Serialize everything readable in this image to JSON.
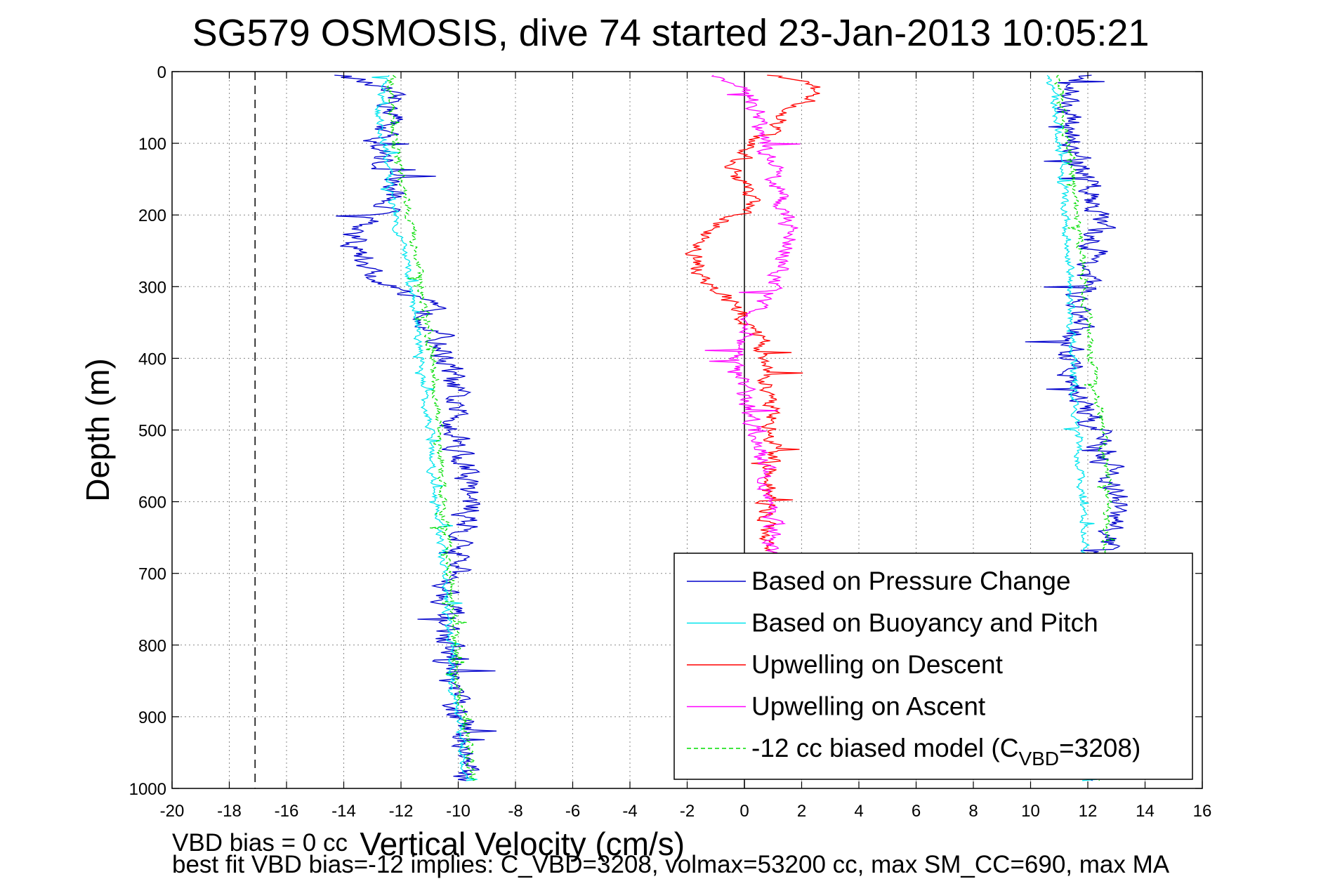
{
  "chart_data": {
    "type": "line",
    "title": "SG579 OSMOSIS, dive 74 started 23-Jan-2013 10:05:21",
    "xlabel": "Vertical Velocity (cm/s)",
    "ylabel": "Depth (m)",
    "xlim": [
      -20,
      16
    ],
    "ylim": [
      0,
      1000
    ],
    "y_reversed": true,
    "grid": true,
    "legend_position": "bottom-right",
    "x_ticks": [
      -20,
      -18,
      -16,
      -14,
      -12,
      -10,
      -8,
      -6,
      -4,
      -2,
      0,
      2,
      4,
      6,
      8,
      10,
      12,
      14,
      16
    ],
    "y_ticks": [
      0,
      100,
      200,
      300,
      400,
      500,
      600,
      700,
      800,
      900,
      1000
    ],
    "reference_line_x": -17.1,
    "zero_line_x": 0,
    "series": [
      {
        "name": "Based on Pressure Change",
        "color": "#0000cc",
        "style": "solid",
        "noise": 0.9,
        "segments": [
          {
            "depth": [
              5,
              20,
              40,
              60,
              80,
              100,
              130,
              160,
              190,
              210,
              230,
              250,
              270,
              290,
              310,
              330,
              360,
              400,
              450,
              500,
              550,
              600,
              650,
              700,
              750,
              800,
              850,
              900,
              950,
              990
            ],
            "v": [
              -14,
              -13,
              -12.3,
              -12.2,
              -12.5,
              -12.8,
              -12.6,
              -12.3,
              -12.5,
              -13,
              -13.8,
              -13.5,
              -13.2,
              -13,
              -12,
              -11,
              -10.8,
              -10.4,
              -10.2,
              -10,
              -9.8,
              -9.6,
              -9.8,
              -10.2,
              -10.3,
              -10.4,
              -10.3,
              -10,
              -9.7,
              -9.8
            ]
          },
          {
            "depth": [
              5,
              20,
              40,
              60,
              80,
              100,
              130,
              160,
              190,
              220,
              260,
              300,
              350,
              400,
              450,
              500,
              550,
              600,
              650,
              700,
              750,
              800,
              850,
              900,
              950,
              990
            ],
            "v": [
              12,
              11.5,
              11.3,
              11.2,
              11.4,
              11.5,
              11.6,
              12,
              12.4,
              12.3,
              12.2,
              11.8,
              11.6,
              11.4,
              11.7,
              12.3,
              12.8,
              13,
              12.7,
              12.5,
              12.4,
              12.3,
              12.2,
              12.2,
              12.3,
              12.3
            ]
          }
        ]
      },
      {
        "name": "Based on Buoyancy and Pitch",
        "color": "#00e5ee",
        "style": "solid",
        "noise": 0.25,
        "segments": [
          {
            "depth": [
              5,
              30,
              60,
              100,
              150,
              200,
              250,
              300,
              350,
              400,
              450,
              500,
              550,
              600,
              650,
              700,
              750,
              800,
              850,
              900,
              950,
              990
            ],
            "v": [
              -12.5,
              -12.7,
              -12.8,
              -12.6,
              -12.4,
              -12.2,
              -11.9,
              -11.7,
              -11.5,
              -11.3,
              -11.2,
              -11,
              -10.9,
              -10.8,
              -10.6,
              -10.5,
              -10.4,
              -10.3,
              -10.2,
              -10,
              -9.8,
              -9.8
            ]
          },
          {
            "depth": [
              5,
              30,
              60,
              100,
              150,
              200,
              250,
              300,
              350,
              400,
              450,
              500,
              550,
              600,
              650,
              700,
              750,
              800,
              850,
              900,
              950,
              990
            ],
            "v": [
              10.6,
              10.8,
              10.9,
              11,
              11.1,
              11.2,
              11.3,
              11.4,
              11.4,
              11.5,
              11.5,
              11.6,
              11.7,
              11.8,
              11.9,
              11.9,
              12,
              12,
              12.1,
              12.1,
              12.2,
              12.2
            ]
          }
        ]
      },
      {
        "name": "Upwelling on Descent",
        "color": "#ff0000",
        "style": "solid",
        "noise": 0.6,
        "segments": [
          {
            "depth": [
              5,
              20,
              40,
              60,
              80,
              100,
              130,
              160,
              190,
              220,
              250,
              280,
              310,
              340,
              370,
              400,
              450,
              500,
              550,
              600,
              650,
              700
            ],
            "v": [
              1,
              2.5,
              2.2,
              1.5,
              1,
              0.2,
              -0.3,
              -0.1,
              0.2,
              -1.2,
              -1.8,
              -1.5,
              -0.8,
              0,
              0.5,
              0.8,
              0.9,
              1,
              1,
              0.9,
              0.8,
              0.7
            ]
          }
        ]
      },
      {
        "name": "Upwelling on Ascent",
        "color": "#ff00ff",
        "style": "solid",
        "noise": 0.6,
        "segments": [
          {
            "depth": [
              5,
              20,
              40,
              60,
              80,
              100,
              130,
              160,
              190,
              220,
              250,
              280,
              310,
              340,
              370,
              400,
              450,
              500,
              550,
              600,
              650,
              700
            ],
            "v": [
              -1,
              0,
              0.3,
              0.6,
              0.5,
              0.7,
              1,
              1.2,
              1.3,
              1.5,
              1.6,
              1.2,
              0.8,
              0.2,
              0,
              -0.2,
              0,
              0.4,
              0.8,
              0.9,
              1,
              1
            ]
          }
        ]
      },
      {
        "name": "-12 cc biased model (C",
        "name_sub": "VBD",
        "name_end": "=3208)",
        "color": "#00dd00",
        "style": "dashed",
        "noise": 0.25,
        "segments": [
          {
            "depth": [
              5,
              30,
              60,
              100,
              150,
              200,
              250,
              300,
              350,
              400,
              450,
              500,
              550,
              600,
              650,
              700,
              750,
              800,
              850,
              900,
              950,
              990
            ],
            "v": [
              -12.3,
              -12.4,
              -12.3,
              -12.2,
              -12,
              -11.7,
              -11.5,
              -11.3,
              -11.1,
              -10.9,
              -10.8,
              -10.7,
              -10.6,
              -10.5,
              -10.4,
              -10.3,
              -10.2,
              -10.1,
              -10,
              -9.8,
              -9.6,
              -9.5
            ]
          },
          {
            "depth": [
              5,
              30,
              60,
              100,
              150,
              200,
              250,
              300,
              350,
              400,
              450,
              500,
              550,
              600,
              650,
              700,
              750,
              800,
              850,
              900,
              950,
              990
            ],
            "v": [
              10.9,
              11,
              11.1,
              11.3,
              11.5,
              11.6,
              11.8,
              11.9,
              12,
              12.1,
              12.3,
              12.5,
              12.6,
              12.7,
              12.6,
              12.5,
              12.5,
              12.4,
              12.4,
              12.4,
              12.3,
              12.3
            ]
          }
        ]
      }
    ]
  },
  "footer": {
    "vbd_bias": "VBD bias = 0 cc",
    "best_fit": "best fit VBD bias=-12 implies: C_VBD=3208, volmax=53200 cc, max SM_CC=690, max MA"
  }
}
